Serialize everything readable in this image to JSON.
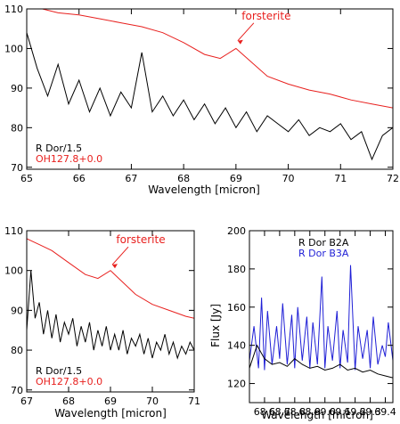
{
  "chart_data": [
    {
      "type": "line",
      "xlabel": "Wavelength [micron]",
      "ylabel": "",
      "xlim": [
        65,
        72
      ],
      "ylim": [
        69.5,
        110
      ],
      "xticks": [
        65,
        66,
        67,
        68,
        69,
        70,
        71,
        72
      ],
      "yticks": [
        70,
        80,
        90,
        100,
        110
      ],
      "annotation": {
        "text": "forsterite",
        "x": 69.0,
        "y": 101.5
      },
      "legend": [
        {
          "text": "R Dor/1.5",
          "color": "#000000"
        },
        {
          "text": "OH127.8+0.0",
          "color": "#e8201e"
        }
      ],
      "series": [
        {
          "name": "OH127.8+0.0",
          "color": "#e8201e",
          "x": [
            65.0,
            65.3,
            65.6,
            66.0,
            66.4,
            66.8,
            67.2,
            67.6,
            68.0,
            68.4,
            68.7,
            69.0,
            69.3,
            69.6,
            70.0,
            70.4,
            70.8,
            71.2,
            71.6,
            72.0
          ],
          "values": [
            111,
            110,
            109,
            108.5,
            107.5,
            106.5,
            105.5,
            104,
            101.5,
            98.5,
            97.5,
            100,
            96.5,
            93,
            91,
            89.5,
            88.5,
            87,
            86,
            85
          ]
        },
        {
          "name": "R Dor/1.5",
          "color": "#000000",
          "x": [
            65.0,
            65.2,
            65.4,
            65.6,
            65.8,
            66.0,
            66.2,
            66.4,
            66.6,
            66.8,
            67.0,
            67.2,
            67.4,
            67.6,
            67.8,
            68.0,
            68.2,
            68.4,
            68.6,
            68.8,
            69.0,
            69.2,
            69.4,
            69.6,
            69.8,
            70.0,
            70.2,
            70.4,
            70.6,
            70.8,
            71.0,
            71.2,
            71.4,
            71.6,
            71.8,
            72.0
          ],
          "values": [
            104,
            95,
            88,
            96,
            86,
            92,
            84,
            90,
            83,
            89,
            85,
            99,
            84,
            88,
            83,
            87,
            82,
            86,
            81,
            85,
            80,
            84,
            79,
            83,
            81,
            79,
            82,
            78,
            80,
            79,
            81,
            77,
            79,
            72,
            78,
            80
          ]
        }
      ]
    },
    {
      "type": "line",
      "xlabel": "Wavelength [micron]",
      "ylabel": "",
      "xlim": [
        67,
        71
      ],
      "ylim": [
        69.5,
        110
      ],
      "xticks": [
        67,
        68,
        69,
        70,
        71
      ],
      "yticks": [
        70,
        80,
        90,
        100,
        110
      ],
      "annotation": {
        "text": "forsterite",
        "x": 69.0,
        "y": 101
      },
      "legend": [
        {
          "text": "R Dor/1.5",
          "color": "#000000"
        },
        {
          "text": "OH127.8+0.0",
          "color": "#e8201e"
        }
      ],
      "series": [
        {
          "name": "OH127.8+0.0",
          "color": "#e8201e",
          "x": [
            67.0,
            67.3,
            67.6,
            68.0,
            68.4,
            68.7,
            69.0,
            69.3,
            69.6,
            70.0,
            70.4,
            70.8,
            71.0
          ],
          "values": [
            108,
            106.5,
            105,
            102,
            99,
            98,
            100,
            97,
            94,
            91.5,
            90,
            88.5,
            88
          ]
        },
        {
          "name": "R Dor/1.5",
          "color": "#000000",
          "x": [
            67.0,
            67.1,
            67.2,
            67.3,
            67.4,
            67.5,
            67.6,
            67.7,
            67.8,
            67.9,
            68.0,
            68.1,
            68.2,
            68.3,
            68.4,
            68.5,
            68.6,
            68.7,
            68.8,
            68.9,
            69.0,
            69.1,
            69.2,
            69.3,
            69.4,
            69.5,
            69.6,
            69.7,
            69.8,
            69.9,
            70.0,
            70.1,
            70.2,
            70.3,
            70.4,
            70.5,
            70.6,
            70.7,
            70.8,
            70.9,
            71.0
          ],
          "values": [
            85,
            100,
            88,
            92,
            84,
            90,
            83,
            89,
            82,
            87,
            84,
            88,
            81,
            86,
            82,
            87,
            80,
            85,
            81,
            86,
            80,
            84,
            80,
            85,
            79,
            83,
            81,
            84,
            79,
            83,
            78,
            82,
            80,
            84,
            79,
            82,
            78,
            81,
            79,
            82,
            80
          ]
        }
      ]
    },
    {
      "type": "line",
      "xlabel": "Wavelength [micron]",
      "ylabel": "Flux [Jy]",
      "xlim": [
        68.5,
        69.45
      ],
      "ylim": [
        110,
        200
      ],
      "xticks": [
        68.6,
        68.7,
        68.8,
        68.9,
        69.0,
        69.1,
        69.2,
        69.3,
        69.4
      ],
      "xtick_labels": [
        "68.6",
        "68.7",
        "68.8",
        "68.9",
        "69.0",
        "69.1",
        "69.2",
        "69.3",
        "69.4"
      ],
      "yticks": [
        120,
        140,
        160,
        180,
        200
      ],
      "legend": [
        {
          "text": "R Dor B2A",
          "color": "#000000"
        },
        {
          "text": "R Dor B3A",
          "color": "#1f1fd6"
        }
      ],
      "series": [
        {
          "name": "R Dor B3A",
          "color": "#1f1fd6",
          "x": [
            68.5,
            68.53,
            68.56,
            68.58,
            68.6,
            68.62,
            68.65,
            68.68,
            68.7,
            68.72,
            68.75,
            68.78,
            68.8,
            68.82,
            68.85,
            68.88,
            68.9,
            68.92,
            68.95,
            68.98,
            69.0,
            69.02,
            69.05,
            69.08,
            69.1,
            69.12,
            69.15,
            69.17,
            69.2,
            69.22,
            69.25,
            69.28,
            69.3,
            69.32,
            69.35,
            69.38,
            69.4,
            69.42,
            69.45
          ],
          "values": [
            132,
            150,
            128,
            165,
            127,
            158,
            130,
            150,
            133,
            162,
            130,
            156,
            128,
            160,
            132,
            155,
            128,
            152,
            130,
            176,
            128,
            150,
            132,
            158,
            128,
            148,
            131,
            182,
            127,
            150,
            133,
            148,
            128,
            155,
            130,
            140,
            134,
            152,
            132
          ]
        },
        {
          "name": "R Dor B2A",
          "color": "#000000",
          "x": [
            68.5,
            68.55,
            68.6,
            68.65,
            68.7,
            68.75,
            68.8,
            68.85,
            68.9,
            68.95,
            69.0,
            69.05,
            69.1,
            69.15,
            69.2,
            69.25,
            69.3,
            69.35,
            69.4,
            69.45
          ],
          "values": [
            128,
            140,
            133,
            130,
            131,
            129,
            133,
            130,
            128,
            129,
            127,
            128,
            130,
            127,
            128,
            126,
            127,
            125,
            124,
            123
          ]
        }
      ]
    }
  ]
}
